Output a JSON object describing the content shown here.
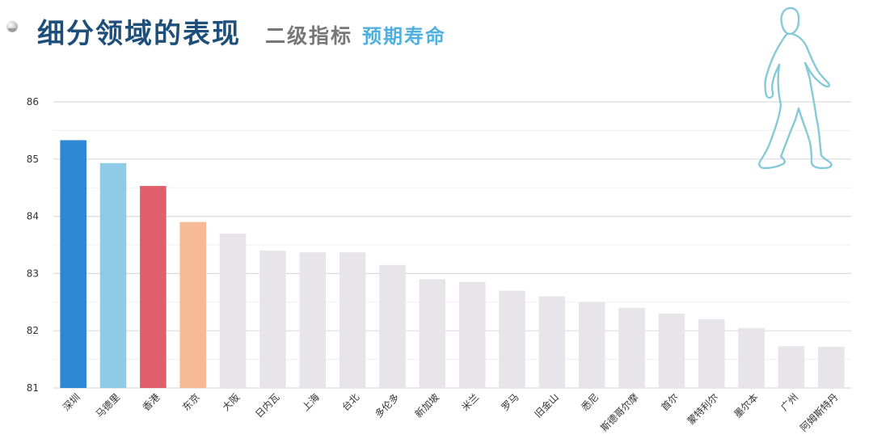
{
  "header": {
    "main_title": "细分领域的表现",
    "sub_title": "二级指标",
    "metric_title": "预期寿命"
  },
  "colors": {
    "title": "#1e4f7a",
    "sub_title": "#777777",
    "metric_title": "#4fb0df",
    "highlight_1": "#2f86d2",
    "highlight_2": "#8fcbe6",
    "highlight_3": "#e15e6b",
    "highlight_4": "#f6bb96",
    "default_bar": "#e7e5e9",
    "walker_outline": "#86c9d8"
  },
  "icons": {
    "bullet": "bullet-icon",
    "walker": "walking-person-icon"
  },
  "chart_data": {
    "type": "bar",
    "title": "",
    "xlabel": "",
    "ylabel": "",
    "ylim": [
      81,
      86
    ],
    "yticks": [
      "81",
      "82",
      "83",
      "84",
      "85",
      "86"
    ],
    "grid": true,
    "categories": [
      "深圳",
      "马德里",
      "香港",
      "东京",
      "大阪",
      "日内瓦",
      "上海",
      "台北",
      "多伦多",
      "新加坡",
      "米兰",
      "罗马",
      "旧金山",
      "悉尼",
      "斯德哥尔摩",
      "首尔",
      "蒙特利尔",
      "墨尔本",
      "广州",
      "阿姆斯特丹"
    ],
    "values": [
      85.33,
      84.93,
      84.53,
      83.9,
      83.7,
      83.4,
      83.37,
      83.37,
      83.15,
      82.9,
      82.85,
      82.7,
      82.6,
      82.5,
      82.4,
      82.3,
      82.2,
      82.05,
      81.73,
      81.72
    ],
    "bar_colors": [
      "#2f86d2",
      "#8fcbe6",
      "#e15e6b",
      "#f6bb96",
      "#e7e5e9",
      "#e7e5e9",
      "#e7e5e9",
      "#e7e5e9",
      "#e7e5e9",
      "#e7e5e9",
      "#e7e5e9",
      "#e7e5e9",
      "#e7e5e9",
      "#e7e5e9",
      "#e7e5e9",
      "#e7e5e9",
      "#e7e5e9",
      "#e7e5e9",
      "#e7e5e9",
      "#e7e5e9"
    ]
  }
}
